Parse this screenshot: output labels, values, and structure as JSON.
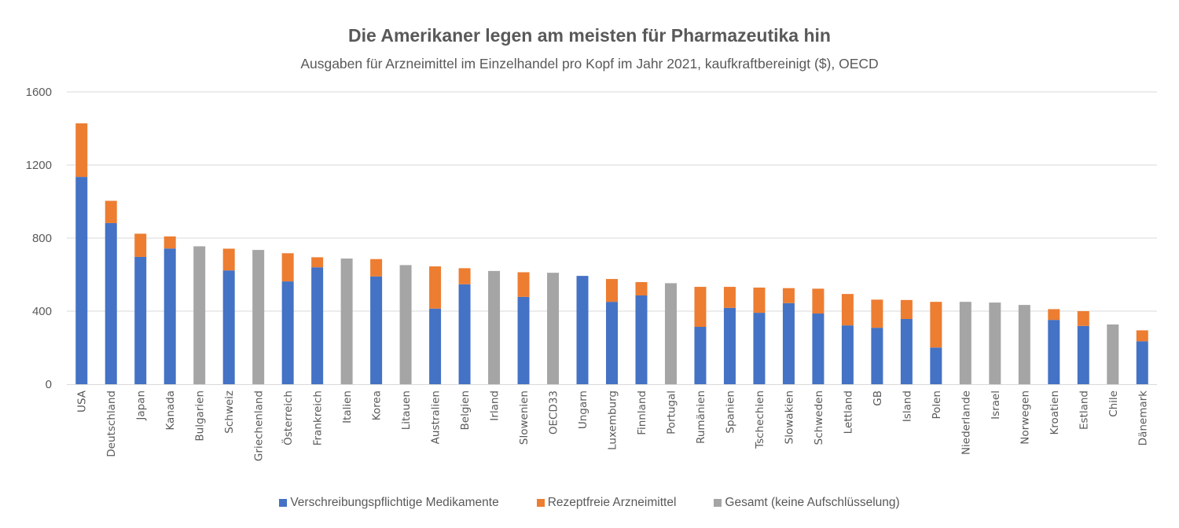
{
  "chart_data": {
    "type": "bar",
    "stacked": true,
    "title": "Die Amerikaner legen am meisten für Pharmazeutika hin",
    "subtitle": "Ausgaben für Arzneimittel im Einzelhandel pro Kopf im Jahr 2021, kaufkraftbereinigt ($), OECD",
    "xlabel": "",
    "ylabel": "",
    "ylim": [
      0,
      1600
    ],
    "yticks": [
      0,
      400,
      800,
      1200,
      1600
    ],
    "grid": true,
    "legend_position": "bottom",
    "categories": [
      "USA",
      "Deutschland",
      "Japan",
      "Kanada",
      "Bulgarien",
      "Schweiz",
      "Griechenland",
      "Österreich",
      "Frankreich",
      "Italien",
      "Korea",
      "Litauen",
      "Australien",
      "Belgien",
      "Irland",
      "Slowenien",
      "OECD33",
      "Ungarn",
      "Luxemburg",
      "Finnland",
      "Portugal",
      "Rumänien",
      "Spanien",
      "Tschechien",
      "Slowakien",
      "Schweden",
      "Lettland",
      "GB",
      "Island",
      "Polen",
      "Niederlande",
      "Israel",
      "Norwegen",
      "Kroatien",
      "Estland",
      "Chile",
      "Dänemark"
    ],
    "series": [
      {
        "name": "Verschreibungspflichtige Medikamente",
        "color": "#4472C4",
        "values": [
          1135,
          882,
          697,
          743,
          0,
          623,
          0,
          563,
          640,
          0,
          590,
          0,
          414,
          547,
          0,
          478,
          0,
          593,
          451,
          486,
          0,
          314,
          418,
          391,
          444,
          387,
          322,
          309,
          357,
          201,
          0,
          0,
          0,
          352,
          319,
          0,
          235
        ]
      },
      {
        "name": "Rezeptfreie Arzneimittel",
        "color": "#ED7D31",
        "values": [
          293,
          122,
          127,
          66,
          0,
          119,
          0,
          154,
          55,
          0,
          95,
          0,
          231,
          88,
          0,
          135,
          0,
          0,
          125,
          73,
          0,
          219,
          115,
          138,
          82,
          136,
          172,
          154,
          104,
          250,
          0,
          0,
          0,
          59,
          81,
          0,
          60
        ]
      },
      {
        "name": "Gesamt (keine Aufschlüsselung)",
        "color": "#A5A5A5",
        "values": [
          0,
          0,
          0,
          0,
          755,
          0,
          735,
          0,
          0,
          688,
          0,
          652,
          0,
          0,
          620,
          0,
          610,
          0,
          0,
          0,
          553,
          0,
          0,
          0,
          0,
          0,
          0,
          0,
          0,
          0,
          451,
          447,
          434,
          0,
          0,
          327,
          0
        ]
      }
    ]
  }
}
